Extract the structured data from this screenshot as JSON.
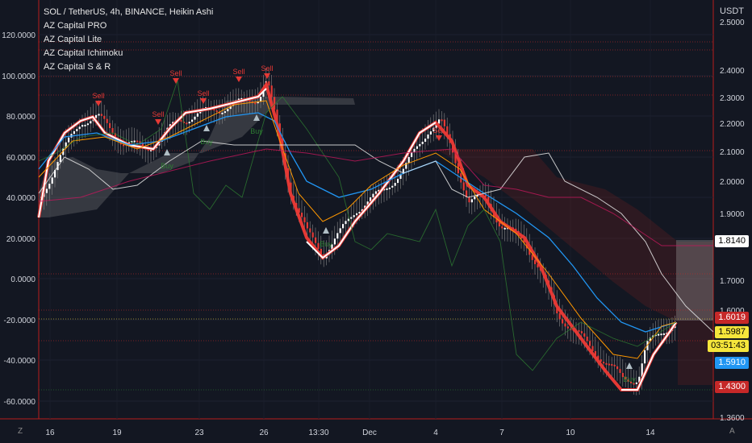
{
  "legend": {
    "title": "SOL / TetherUS, 4h, BINANCE, Heikin Ashi",
    "items": [
      "AZ Capital PRO",
      "AZ Capital Lite",
      "AZ Capital Ichimoku",
      "AZ Capital S & R"
    ]
  },
  "right_axis": {
    "unit": "USDT",
    "ticks": [
      "2.5000",
      "2.4000",
      "2.3000",
      "2.2000",
      "2.1000",
      "2.0000",
      "1.9000",
      "1.7000",
      "1.6000",
      "1.3600"
    ],
    "tags": [
      {
        "label": "1.8140",
        "bg": "#ffffff",
        "fg": "#000000"
      },
      {
        "label": "1.6019",
        "bg": "#c62828",
        "fg": "#ffffff"
      },
      {
        "label": "1.5987",
        "bg": "#f5e63b",
        "fg": "#000000"
      },
      {
        "label": "03:51:43",
        "bg": "#f5e63b",
        "fg": "#000000"
      },
      {
        "label": "1.5910",
        "bg": "#2196f3",
        "fg": "#ffffff"
      },
      {
        "label": "1.4300",
        "bg": "#c62828",
        "fg": "#ffffff"
      }
    ]
  },
  "left_axis": {
    "ticks": [
      "120.0000",
      "100.0000",
      "80.0000",
      "60.0000",
      "40.0000",
      "20.0000",
      "0.0000",
      "-20.0000",
      "-40.0000",
      "-60.0000"
    ]
  },
  "time_axis": {
    "ticks": [
      "16",
      "19",
      "23",
      "26",
      "13:30",
      "Dec",
      "4",
      "7",
      "10",
      "14"
    ]
  },
  "signals": {
    "sell": "Sell",
    "buy": "Buy"
  },
  "corner_left": "Z",
  "corner_right": "A",
  "colors": {
    "background": "#131722",
    "red_line": "#e53935",
    "white_line": "#ffffff",
    "blue_line": "#2196f3",
    "orange_line": "#ff9800",
    "green_line": "#2e7d32"
  }
}
